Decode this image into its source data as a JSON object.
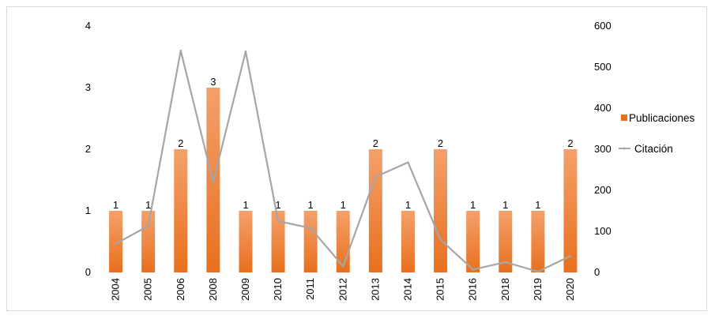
{
  "chart_data": {
    "type": "bar",
    "categories": [
      "2004",
      "2005",
      "2006",
      "2008",
      "2009",
      "2010",
      "2011",
      "2012",
      "2013",
      "2014",
      "2015",
      "2016",
      "2018",
      "2019",
      "2020"
    ],
    "series": [
      {
        "name": "Publicaciones",
        "type": "bar",
        "axis": "left",
        "values": [
          1,
          1,
          2,
          3,
          1,
          1,
          1,
          1,
          2,
          1,
          2,
          1,
          1,
          1,
          2
        ],
        "data_labels": [
          "1",
          "1",
          "2",
          "3",
          "1",
          "1",
          "1",
          "1",
          "2",
          "1",
          "2",
          "1",
          "1",
          "1",
          "2"
        ]
      },
      {
        "name": "Citación",
        "type": "line",
        "axis": "right",
        "values": [
          70,
          113,
          540,
          220,
          538,
          125,
          108,
          15,
          233,
          268,
          80,
          7,
          25,
          2,
          40
        ]
      }
    ],
    "y_left": {
      "ylim": [
        0,
        4
      ],
      "ticks": [
        "0",
        "1",
        "2",
        "3",
        "4"
      ]
    },
    "y_right": {
      "ylim": [
        0,
        600
      ],
      "ticks": [
        "0",
        "100",
        "200",
        "300",
        "400",
        "500",
        "600"
      ]
    },
    "legend_position": "right",
    "grid": false,
    "colors": {
      "bar_top": "#f4a06b",
      "bar_bottom": "#e8701e",
      "line": "#a6a6a6"
    }
  }
}
